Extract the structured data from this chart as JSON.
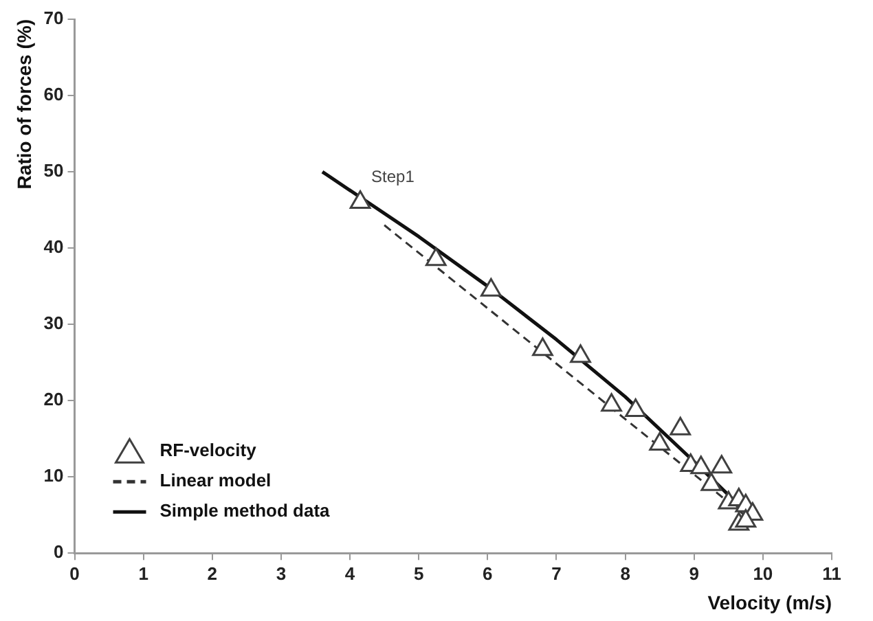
{
  "chart_data": {
    "type": "scatter",
    "xlabel": "Velocity (m/s)",
    "ylabel": "Ratio of forces (%)",
    "xlim": [
      0,
      11
    ],
    "xticks": [
      0,
      1,
      2,
      3,
      4,
      5,
      6,
      7,
      8,
      9,
      10,
      11
    ],
    "ylim": [
      0,
      70
    ],
    "yticks": [
      0,
      10,
      20,
      30,
      40,
      50,
      60,
      70
    ],
    "grid": false,
    "legend": "bottom left",
    "annotations": [
      {
        "text": "Step1",
        "x": 4.15,
        "y": 46
      }
    ],
    "series": [
      {
        "name": "RF-velocity",
        "marker": "triangle",
        "color": "#404040",
        "x": [
          4.15,
          5.25,
          6.05,
          6.8,
          7.35,
          7.8,
          8.15,
          8.8,
          8.5,
          8.95,
          9.1,
          9.4,
          9.25,
          9.5,
          9.65,
          9.75,
          9.85,
          9.65,
          9.75
        ],
        "values": [
          46,
          38.5,
          34.5,
          26.7,
          25.8,
          19.4,
          18.7,
          16.3,
          14.3,
          11.5,
          11.2,
          11.3,
          9,
          6.6,
          7,
          6.2,
          5.1,
          3.8,
          4.2
        ]
      },
      {
        "name": "Linear model",
        "type": "line",
        "line_style": "dashed",
        "marker": "none",
        "color": "#333333",
        "x": [
          4.5,
          9.8
        ],
        "values": [
          43,
          4.5
        ]
      },
      {
        "name": "Simple method data",
        "type": "line",
        "line_style": "solid",
        "marker": "none",
        "color": "#111111",
        "x": [
          3.6,
          5,
          6,
          7,
          8,
          9,
          9.8
        ],
        "values": [
          50,
          41.5,
          35,
          28,
          20.5,
          12,
          5
        ]
      }
    ]
  }
}
